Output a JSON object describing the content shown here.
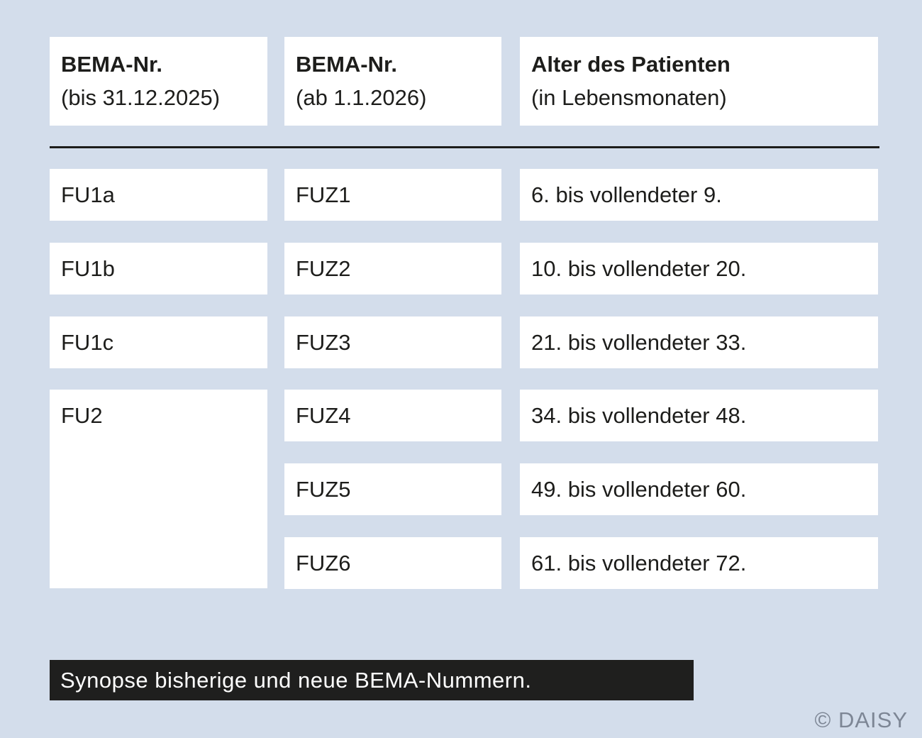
{
  "table": {
    "headers": [
      {
        "title": "BEMA-Nr.",
        "subtitle": "(bis 31.12.2025)"
      },
      {
        "title": "BEMA-Nr.",
        "subtitle": "(ab 1.1.2026)"
      },
      {
        "title": "Alter des Patienten",
        "subtitle": "(in Lebensmonaten)"
      }
    ],
    "old_codes": [
      {
        "code": "FU1a"
      },
      {
        "code": "FU1b"
      },
      {
        "code": "FU1c"
      },
      {
        "code": "FU2"
      }
    ],
    "mappings": [
      {
        "new_code": "FUZ1",
        "age": "6. bis vollendeter 9."
      },
      {
        "new_code": "FUZ2",
        "age": "10. bis vollendeter 20."
      },
      {
        "new_code": "FUZ3",
        "age": "21. bis vollendeter 33."
      },
      {
        "new_code": "FUZ4",
        "age": "34. bis vollendeter 48."
      },
      {
        "new_code": "FUZ5",
        "age": "49. bis vollendeter 60."
      },
      {
        "new_code": "FUZ6",
        "age": "61. bis vollendeter 72."
      }
    ]
  },
  "footer": {
    "caption": "Synopse bisherige und neue BEMA-Nummern.",
    "credit": "© DAISY"
  },
  "colors": {
    "background": "#d3ddeb",
    "cell_background": "#ffffff",
    "text": "#1d1d1b",
    "caption_background": "#1f1f1e",
    "caption_text": "#ffffff",
    "credit_text": "#7d8695",
    "divider": "#1d1d1b"
  },
  "chart_data": {
    "type": "table",
    "title": "Synopse bisherige und neue BEMA-Nummern.",
    "columns": [
      "BEMA-Nr. (bis 31.12.2025)",
      "BEMA-Nr. (ab 1.1.2026)",
      "Alter des Patienten (in Lebensmonaten)"
    ],
    "rows": [
      [
        "FU1a",
        "FUZ1",
        "6. bis vollendeter 9."
      ],
      [
        "FU1b",
        "FUZ2",
        "10. bis vollendeter 20."
      ],
      [
        "FU1c",
        "FUZ3",
        "21. bis vollendeter 33."
      ],
      [
        "FU2",
        "FUZ4",
        "34. bis vollendeter 48."
      ],
      [
        "",
        "FUZ5",
        "49. bis vollendeter 60."
      ],
      [
        "",
        "FUZ6",
        "61. bis vollendeter 72."
      ]
    ],
    "merged_cells": [
      {
        "column": 0,
        "value": "FU2",
        "row_start": 3,
        "row_end": 5
      }
    ],
    "layout_hints": {
      "grid": false,
      "header_divider": true,
      "cell_style": "white boxes on light blue background"
    }
  }
}
